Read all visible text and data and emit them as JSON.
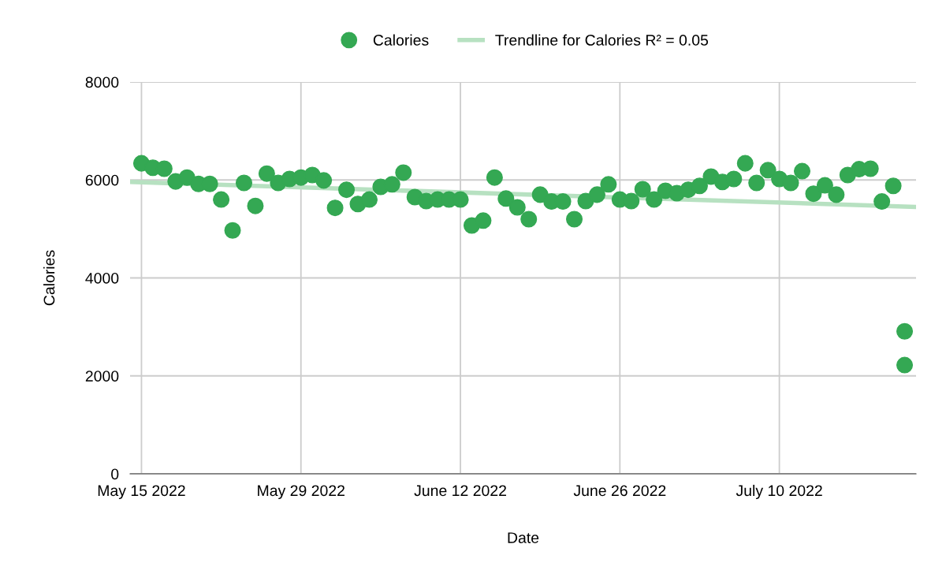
{
  "chart_data": {
    "type": "scatter",
    "xlabel": "Date",
    "ylabel": "Calories",
    "x": [
      "2022-05-15",
      "2022-05-16",
      "2022-05-17",
      "2022-05-18",
      "2022-05-19",
      "2022-05-20",
      "2022-05-21",
      "2022-05-22",
      "2022-05-23",
      "2022-05-24",
      "2022-05-25",
      "2022-05-26",
      "2022-05-27",
      "2022-05-28",
      "2022-05-29",
      "2022-05-30",
      "2022-05-31",
      "2022-06-01",
      "2022-06-02",
      "2022-06-03",
      "2022-06-04",
      "2022-06-05",
      "2022-06-06",
      "2022-06-07",
      "2022-06-08",
      "2022-06-09",
      "2022-06-10",
      "2022-06-11",
      "2022-06-12",
      "2022-06-13",
      "2022-06-14",
      "2022-06-15",
      "2022-06-16",
      "2022-06-17",
      "2022-06-18",
      "2022-06-19",
      "2022-06-20",
      "2022-06-21",
      "2022-06-22",
      "2022-06-23",
      "2022-06-24",
      "2022-06-25",
      "2022-06-26",
      "2022-06-27",
      "2022-06-28",
      "2022-06-29",
      "2022-06-30",
      "2022-07-01",
      "2022-07-02",
      "2022-07-03",
      "2022-07-04",
      "2022-07-05",
      "2022-07-06",
      "2022-07-07",
      "2022-07-08",
      "2022-07-09",
      "2022-07-10",
      "2022-07-11",
      "2022-07-12",
      "2022-07-13",
      "2022-07-14",
      "2022-07-15",
      "2022-07-16",
      "2022-07-17",
      "2022-07-18",
      "2022-07-19",
      "2022-07-20",
      "2022-07-21",
      "2022-07-21"
    ],
    "series": [
      {
        "name": "Calories",
        "color": "#34a853",
        "marker": "circle",
        "values": [
          6340,
          6250,
          6230,
          5970,
          6050,
          5920,
          5920,
          5600,
          4970,
          5940,
          5470,
          6130,
          5940,
          6020,
          6050,
          6100,
          5990,
          5430,
          5800,
          5510,
          5600,
          5860,
          5910,
          6150,
          5650,
          5570,
          5600,
          5600,
          5600,
          5070,
          5170,
          6050,
          5620,
          5440,
          5200,
          5700,
          5560,
          5560,
          5200,
          5570,
          5700,
          5910,
          5600,
          5570,
          5810,
          5600,
          5780,
          5730,
          5800,
          5880,
          6070,
          5960,
          6020,
          6340,
          5940,
          6200,
          6020,
          5940,
          6180,
          5720,
          5890,
          5700,
          6100,
          6220,
          6230,
          5560,
          5880,
          2910,
          2220
        ]
      },
      {
        "name": "Trendline for Calories R² = 0.05",
        "color": "#b7e1c1",
        "type": "line",
        "marker": "none",
        "x": [
          "2022-05-14",
          "2022-07-22"
        ],
        "values": [
          5960,
          5450
        ]
      }
    ],
    "xlim": [
      "2022-05-14",
      "2022-07-22"
    ],
    "xticks": [
      {
        "value": "2022-05-15",
        "label": "May 15 2022"
      },
      {
        "value": "2022-05-29",
        "label": "May 29 2022"
      },
      {
        "value": "2022-06-12",
        "label": "June 12 2022"
      },
      {
        "value": "2022-06-26",
        "label": "June 26 2022"
      },
      {
        "value": "2022-07-10",
        "label": "July 10 2022"
      }
    ],
    "ylim": [
      0,
      8000
    ],
    "yticks": [
      0,
      2000,
      4000,
      6000,
      8000
    ],
    "grid": true,
    "legend": "top"
  }
}
